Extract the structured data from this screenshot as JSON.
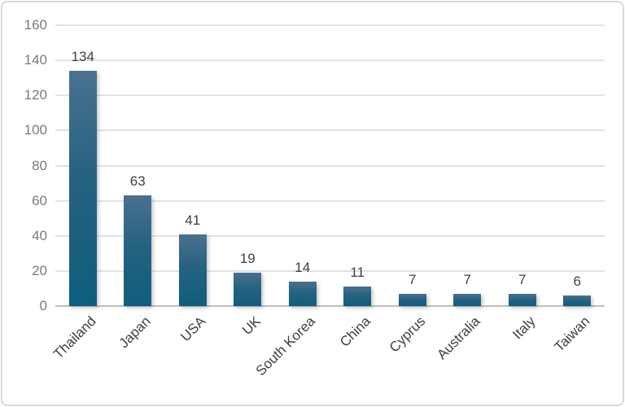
{
  "chart_data": {
    "type": "bar",
    "title": "",
    "xlabel": "",
    "ylabel": "",
    "categories": [
      "Thailand",
      "Japan",
      "USA",
      "UK",
      "South Korea",
      "China",
      "Cyprus",
      "Australia",
      "Italy",
      "Taiwan"
    ],
    "values": [
      134,
      63,
      41,
      19,
      14,
      11,
      7,
      7,
      7,
      6
    ],
    "data_labels": [
      "134",
      "63",
      "41",
      "19",
      "14",
      "11",
      "7",
      "7",
      "7",
      "6"
    ],
    "ylim": [
      0,
      160
    ],
    "yticks": [
      0,
      20,
      40,
      60,
      80,
      100,
      120,
      140,
      160
    ],
    "grid": true,
    "legend_position": "none"
  },
  "colors": {
    "bar_gradient_top": "#4a7190",
    "bar_gradient_mid": "#266280",
    "bar_gradient_bottom": "#0e5e7d",
    "gridline": "#e2e2e2",
    "axis_line": "#bfbfbf",
    "y_tick_text": "#7a7a7a",
    "label_text": "#3f3f3f",
    "frame_border": "#d9d9d9",
    "background": "#ffffff"
  }
}
